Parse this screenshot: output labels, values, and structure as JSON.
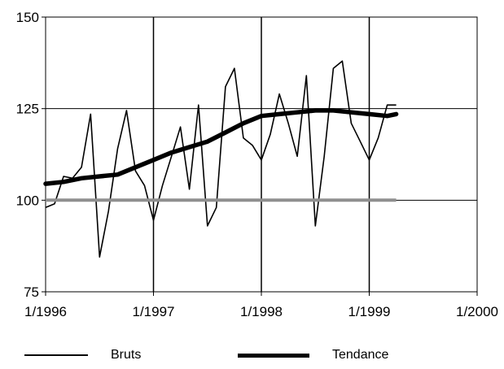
{
  "chart_data": {
    "type": "line",
    "xlabel": "",
    "ylabel": "",
    "x_ticks": [
      "1/1996",
      "1/1997",
      "1/1998",
      "1/1999",
      "1/2000"
    ],
    "y_ticks": [
      "75",
      "100",
      "125",
      "150"
    ],
    "xlim": [
      1996.0,
      2000.0
    ],
    "ylim": [
      75,
      150
    ],
    "grid": true,
    "legend_position": "bottom",
    "series": [
      {
        "name": "Bruts",
        "style": "thin",
        "color": "#000000",
        "x": [
          1996.0,
          1996.083,
          1996.167,
          1996.25,
          1996.333,
          1996.417,
          1996.5,
          1996.583,
          1996.667,
          1996.75,
          1996.833,
          1996.917,
          1997.0,
          1997.083,
          1997.167,
          1997.25,
          1997.333,
          1997.417,
          1997.5,
          1997.583,
          1997.667,
          1997.75,
          1997.833,
          1997.917,
          1998.0,
          1998.083,
          1998.167,
          1998.25,
          1998.333,
          1998.417,
          1998.5,
          1998.583,
          1998.667,
          1998.75,
          1998.833,
          1998.917,
          1999.0,
          1999.083,
          1999.167,
          1999.25
        ],
        "values": [
          98,
          99,
          106.5,
          106,
          109,
          123.5,
          84.5,
          97,
          114,
          124.5,
          108,
          104,
          94.5,
          104,
          112,
          120,
          103,
          126,
          93,
          98,
          131,
          136,
          117,
          115,
          111,
          118,
          129,
          121,
          112,
          134,
          93,
          112,
          136,
          138,
          121,
          116,
          111,
          117,
          126,
          126
        ]
      },
      {
        "name": "Tendance",
        "style": "thick",
        "color": "#000000",
        "x": [
          1996.0,
          1996.167,
          1996.333,
          1996.5,
          1996.667,
          1996.833,
          1997.0,
          1997.167,
          1997.333,
          1997.5,
          1997.667,
          1997.833,
          1998.0,
          1998.167,
          1998.333,
          1998.5,
          1998.667,
          1998.833,
          1999.0,
          1999.167,
          1999.25
        ],
        "values": [
          104.5,
          105,
          106,
          106.5,
          107,
          109,
          111,
          113,
          114.5,
          116,
          118.5,
          121,
          123,
          123.5,
          124,
          124.5,
          124.5,
          124,
          123.5,
          123,
          123.5
        ]
      },
      {
        "name": "",
        "style": "baseline",
        "color": "#8f8f8f",
        "x": [
          1996.0,
          1999.25
        ],
        "values": [
          100,
          100
        ]
      }
    ]
  },
  "legend": [
    {
      "label": "Bruts",
      "style": "thin"
    },
    {
      "label": "Tendance",
      "style": "thick"
    }
  ]
}
